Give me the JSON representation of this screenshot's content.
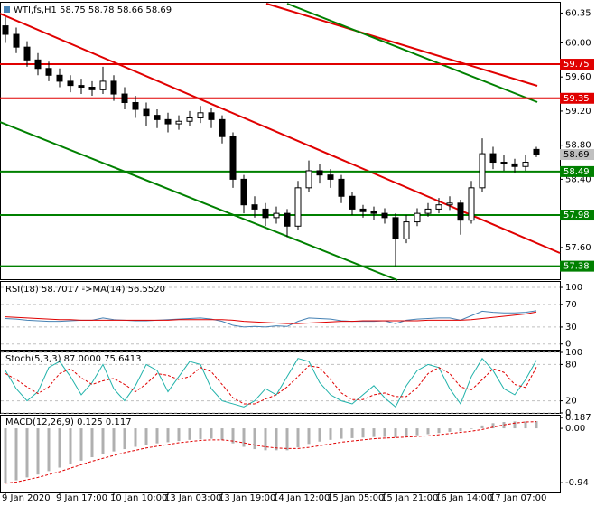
{
  "chart_data": [
    {
      "type": "candlestick",
      "title": "WTI,fs,H1  58.75 58.78 58.66 58.69",
      "categories": [
        "9 Jan 2020",
        null,
        null,
        null,
        null,
        "9 Jan 17:00",
        null,
        null,
        null,
        null,
        "10 Jan 10:00",
        null,
        null,
        null,
        null,
        "13 Jan 03:00",
        null,
        null,
        null,
        null,
        "13 Jan 19:00",
        null,
        null,
        null,
        null,
        "14 Jan 12:00",
        null,
        null,
        null,
        null,
        "15 Jan 05:00",
        null,
        null,
        null,
        null,
        "15 Jan 21:00",
        null,
        null,
        null,
        null,
        "16 Jan 14:00",
        null,
        null,
        null,
        null,
        "17 Jan 07:00",
        null,
        null,
        null,
        null
      ],
      "open": [
        60.2,
        60.1,
        59.95,
        59.8,
        59.7,
        59.62,
        59.55,
        59.5,
        59.48,
        59.45,
        59.55,
        59.4,
        59.3,
        59.22,
        59.15,
        59.1,
        59.05,
        59.08,
        59.12,
        59.18,
        59.1,
        58.9,
        58.4,
        58.1,
        58.05,
        57.95,
        58.0,
        57.85,
        58.3,
        58.5,
        58.45,
        58.4,
        58.2,
        58.05,
        58.02,
        58.0,
        57.95,
        57.7,
        57.9,
        58.0,
        58.05,
        58.1,
        58.12,
        57.92,
        58.3,
        58.7,
        58.6,
        58.58,
        58.55,
        58.75
      ],
      "high": [
        60.3,
        60.18,
        60.02,
        59.88,
        59.78,
        59.7,
        59.62,
        59.58,
        59.55,
        59.72,
        59.62,
        59.48,
        59.38,
        59.3,
        59.22,
        59.18,
        59.15,
        59.2,
        59.26,
        59.24,
        59.15,
        58.95,
        58.45,
        58.2,
        58.12,
        58.08,
        58.05,
        58.38,
        58.62,
        58.58,
        58.52,
        58.45,
        58.25,
        58.1,
        58.08,
        58.06,
        58.0,
        57.98,
        58.06,
        58.12,
        58.18,
        58.2,
        58.16,
        58.38,
        58.88,
        58.78,
        58.68,
        58.64,
        58.68,
        58.78
      ],
      "low": [
        60.0,
        59.88,
        59.72,
        59.62,
        59.55,
        59.48,
        59.42,
        59.4,
        59.38,
        59.4,
        59.32,
        59.22,
        59.12,
        59.02,
        59.0,
        58.95,
        58.98,
        59.02,
        59.06,
        59.0,
        58.82,
        58.3,
        58.0,
        57.95,
        57.85,
        57.88,
        57.72,
        57.8,
        58.25,
        58.35,
        58.3,
        58.12,
        57.98,
        57.95,
        57.92,
        57.88,
        57.38,
        57.65,
        57.85,
        57.96,
        58.0,
        58.04,
        57.75,
        57.88,
        58.25,
        58.52,
        58.5,
        58.48,
        58.5,
        58.66
      ],
      "close": [
        60.1,
        59.95,
        59.8,
        59.7,
        59.62,
        59.55,
        59.5,
        59.48,
        59.45,
        59.55,
        59.4,
        59.3,
        59.22,
        59.15,
        59.1,
        59.05,
        59.08,
        59.12,
        59.18,
        59.1,
        58.9,
        58.4,
        58.1,
        58.05,
        57.95,
        58.0,
        57.85,
        58.3,
        58.5,
        58.45,
        58.4,
        58.2,
        58.05,
        58.02,
        58.0,
        57.95,
        57.7,
        57.9,
        58.0,
        58.05,
        58.1,
        58.12,
        57.92,
        58.3,
        58.7,
        58.6,
        58.58,
        58.55,
        58.6,
        58.69
      ],
      "ylim": [
        57.27,
        60.45
      ],
      "yticks": [
        60.35,
        {
          "value": 60,
          "label": "60.00"
        },
        {
          "value": 59.6,
          "label": "59.60"
        },
        {
          "value": 59.2,
          "label": "59.20"
        },
        {
          "value": 58.8,
          "label": "58.80"
        },
        {
          "value": 58.4,
          "label": "58.40"
        },
        {
          "value": 58,
          "label": "58.00"
        },
        {
          "value": 57.6,
          "label": "57.60"
        }
      ],
      "levels": [
        {
          "value": 59.75,
          "color": "#e00000"
        },
        {
          "value": 59.35,
          "color": "#e00000"
        },
        {
          "value": 58.49,
          "color": "#008000"
        },
        {
          "value": 57.98,
          "color": "#008000"
        },
        {
          "value": 57.38,
          "color": "#008000"
        }
      ],
      "grid": false
    },
    {
      "type": "line",
      "title": "RSI(18) 58.7017 ->MA(14) 56.5520",
      "ylim": [
        -10,
        108
      ],
      "yticks": [
        100,
        70,
        30,
        0
      ],
      "grid": true,
      "series": [
        {
          "color": "#4682b4",
          "dashed": false,
          "values": [
            45,
            44,
            42,
            41,
            40,
            40,
            41,
            42,
            42,
            46,
            43,
            42,
            41,
            41,
            42,
            43,
            44,
            45,
            46,
            44,
            40,
            33,
            30,
            31,
            30,
            32,
            31,
            40,
            46,
            45,
            44,
            41,
            40,
            40,
            40,
            41,
            36,
            42,
            44,
            45,
            46,
            46,
            42,
            50,
            58,
            56,
            55,
            55,
            56,
            58.7017
          ]
        },
        {
          "color": "#e00000",
          "dashed": false,
          "values": [
            48,
            47,
            46,
            45,
            44,
            43,
            43,
            42,
            42,
            42,
            42,
            42,
            42,
            42,
            42,
            42,
            43,
            43,
            43,
            43,
            43,
            42,
            40,
            39,
            38,
            37,
            36,
            36,
            37,
            38,
            39,
            40,
            40,
            41,
            41,
            41,
            41,
            41,
            41,
            42,
            42,
            42,
            42,
            43,
            45,
            47,
            49,
            51,
            53,
            56.552
          ]
        }
      ]
    },
    {
      "type": "line",
      "title": "Stoch(5,3,3) 87.0000 75.6413",
      "ylim": [
        0,
        100
      ],
      "yticks": [
        100,
        80,
        20,
        0
      ],
      "grid": true,
      "series": [
        {
          "color": "#20b2aa",
          "dashed": false,
          "values": [
            70,
            40,
            20,
            35,
            75,
            85,
            60,
            30,
            50,
            80,
            40,
            20,
            45,
            80,
            70,
            35,
            60,
            85,
            80,
            40,
            20,
            15,
            10,
            20,
            40,
            30,
            60,
            90,
            85,
            50,
            30,
            20,
            15,
            30,
            45,
            25,
            10,
            45,
            70,
            80,
            75,
            40,
            15,
            60,
            90,
            70,
            40,
            30,
            55,
            87
          ]
        },
        {
          "color": "#e00000",
          "dashed": true,
          "values": [
            65,
            55,
            43,
            32,
            43,
            65,
            73,
            58,
            47,
            53,
            57,
            47,
            35,
            48,
            65,
            62,
            55,
            60,
            75,
            68,
            47,
            25,
            15,
            15,
            23,
            30,
            43,
            60,
            78,
            75,
            55,
            33,
            22,
            22,
            30,
            33,
            27,
            27,
            42,
            65,
            75,
            65,
            43,
            38,
            55,
            73,
            67,
            47,
            42,
            75.6413
          ]
        }
      ]
    },
    {
      "type": "bar",
      "title": "MACD(12,26,9) 0.125 0.117",
      "ylim": [
        -1.11,
        0.22
      ],
      "yticks": [
        0.187,
        {
          "value": 0,
          "label": "0.00"
        },
        -0.94
      ],
      "grid": false,
      "color": "#b0b0b0",
      "values": [
        -0.94,
        -0.9,
        -0.85,
        -0.8,
        -0.74,
        -0.68,
        -0.62,
        -0.56,
        -0.5,
        -0.45,
        -0.4,
        -0.36,
        -0.32,
        -0.29,
        -0.26,
        -0.24,
        -0.22,
        -0.2,
        -0.19,
        -0.18,
        -0.2,
        -0.26,
        -0.32,
        -0.36,
        -0.38,
        -0.38,
        -0.38,
        -0.33,
        -0.27,
        -0.23,
        -0.2,
        -0.18,
        -0.17,
        -0.16,
        -0.15,
        -0.15,
        -0.16,
        -0.14,
        -0.12,
        -0.1,
        -0.08,
        -0.06,
        -0.05,
        -0.01,
        0.05,
        0.09,
        0.11,
        0.12,
        0.12,
        0.125
      ],
      "series": [
        {
          "color": "#e00000",
          "dashed": true,
          "values": [
            -0.95,
            -0.93,
            -0.89,
            -0.85,
            -0.8,
            -0.75,
            -0.69,
            -0.63,
            -0.57,
            -0.52,
            -0.47,
            -0.42,
            -0.38,
            -0.34,
            -0.31,
            -0.28,
            -0.25,
            -0.23,
            -0.21,
            -0.2,
            -0.2,
            -0.22,
            -0.25,
            -0.29,
            -0.32,
            -0.34,
            -0.35,
            -0.35,
            -0.33,
            -0.3,
            -0.27,
            -0.24,
            -0.22,
            -0.2,
            -0.18,
            -0.17,
            -0.16,
            -0.15,
            -0.14,
            -0.13,
            -0.11,
            -0.09,
            -0.07,
            -0.05,
            -0.02,
            0.02,
            0.06,
            0.09,
            0.11,
            0.117
          ]
        }
      ]
    }
  ]
}
